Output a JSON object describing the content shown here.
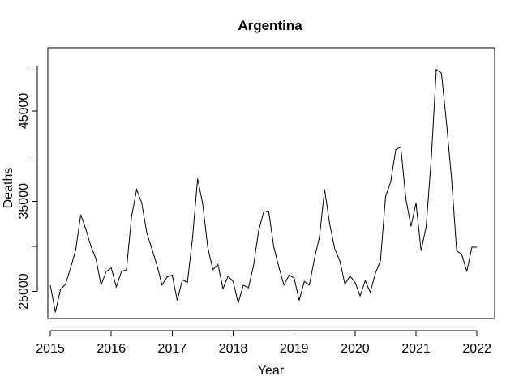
{
  "chart_data": {
    "type": "line",
    "title": "Argentina",
    "xlabel": "Year",
    "ylabel": "Deaths",
    "xlim": [
      2014.96,
      2022.29
    ],
    "ylim": [
      22000,
      52000
    ],
    "x_ticks": [
      2015,
      2016,
      2017,
      2018,
      2019,
      2020,
      2021,
      2022
    ],
    "x_tick_labels": [
      "2015",
      "2016",
      "2017",
      "2018",
      "2019",
      "2020",
      "2021",
      "2022"
    ],
    "y_ticks": [
      25000,
      35000,
      45000
    ],
    "y_tick_labels": [
      "25000",
      "35000",
      "45000"
    ],
    "y_extra_ticks": [
      30000,
      40000,
      50000
    ],
    "grid": false,
    "legend": "none",
    "series": [
      {
        "x": [
          2015.0,
          2015.083,
          2015.167,
          2015.25,
          2015.333,
          2015.417,
          2015.5,
          2015.583,
          2015.667,
          2015.75,
          2015.833,
          2015.917,
          2016.0,
          2016.083,
          2016.167,
          2016.25,
          2016.333,
          2016.417,
          2016.5,
          2016.583,
          2016.667,
          2016.75,
          2016.833,
          2016.917,
          2017.0,
          2017.083,
          2017.167,
          2017.25,
          2017.333,
          2017.417,
          2017.5,
          2017.583,
          2017.667,
          2017.75,
          2017.833,
          2017.917,
          2018.0,
          2018.083,
          2018.167,
          2018.25,
          2018.333,
          2018.417,
          2018.5,
          2018.583,
          2018.667,
          2018.75,
          2018.833,
          2018.917,
          2019.0,
          2019.083,
          2019.167,
          2019.25,
          2019.333,
          2019.417,
          2019.5,
          2019.583,
          2019.667,
          2019.75,
          2019.833,
          2019.917,
          2020.0,
          2020.083,
          2020.167,
          2020.25,
          2020.333,
          2020.417,
          2020.5,
          2020.583,
          2020.667,
          2020.75,
          2020.833,
          2020.917,
          2021.0,
          2021.083,
          2021.167,
          2021.25,
          2021.333,
          2021.417,
          2021.5,
          2021.583,
          2021.667,
          2021.75,
          2021.833,
          2021.917,
          2022.0
        ],
        "values": [
          25700,
          22700,
          25200,
          25800,
          27600,
          29600,
          33500,
          31900,
          30000,
          28600,
          25700,
          27200,
          27600,
          25500,
          27200,
          27400,
          33300,
          36300,
          34800,
          31500,
          29700,
          27900,
          25700,
          26600,
          26800,
          24000,
          26300,
          26000,
          30900,
          37500,
          34700,
          29900,
          27400,
          28000,
          25300,
          26700,
          26100,
          23700,
          25700,
          25400,
          27800,
          31700,
          33800,
          33900,
          29900,
          27700,
          25700,
          26800,
          26500,
          24000,
          26100,
          25700,
          28600,
          31100,
          36300,
          32500,
          29700,
          28400,
          25800,
          26700,
          26000,
          24500,
          26200,
          24900,
          27000,
          28400,
          35500,
          37100,
          40700,
          41000,
          35300,
          32200,
          34800,
          29500,
          32200,
          39700,
          49600,
          49200,
          43700,
          37500,
          29500,
          29100,
          27200,
          29900,
          29900
        ]
      }
    ]
  }
}
